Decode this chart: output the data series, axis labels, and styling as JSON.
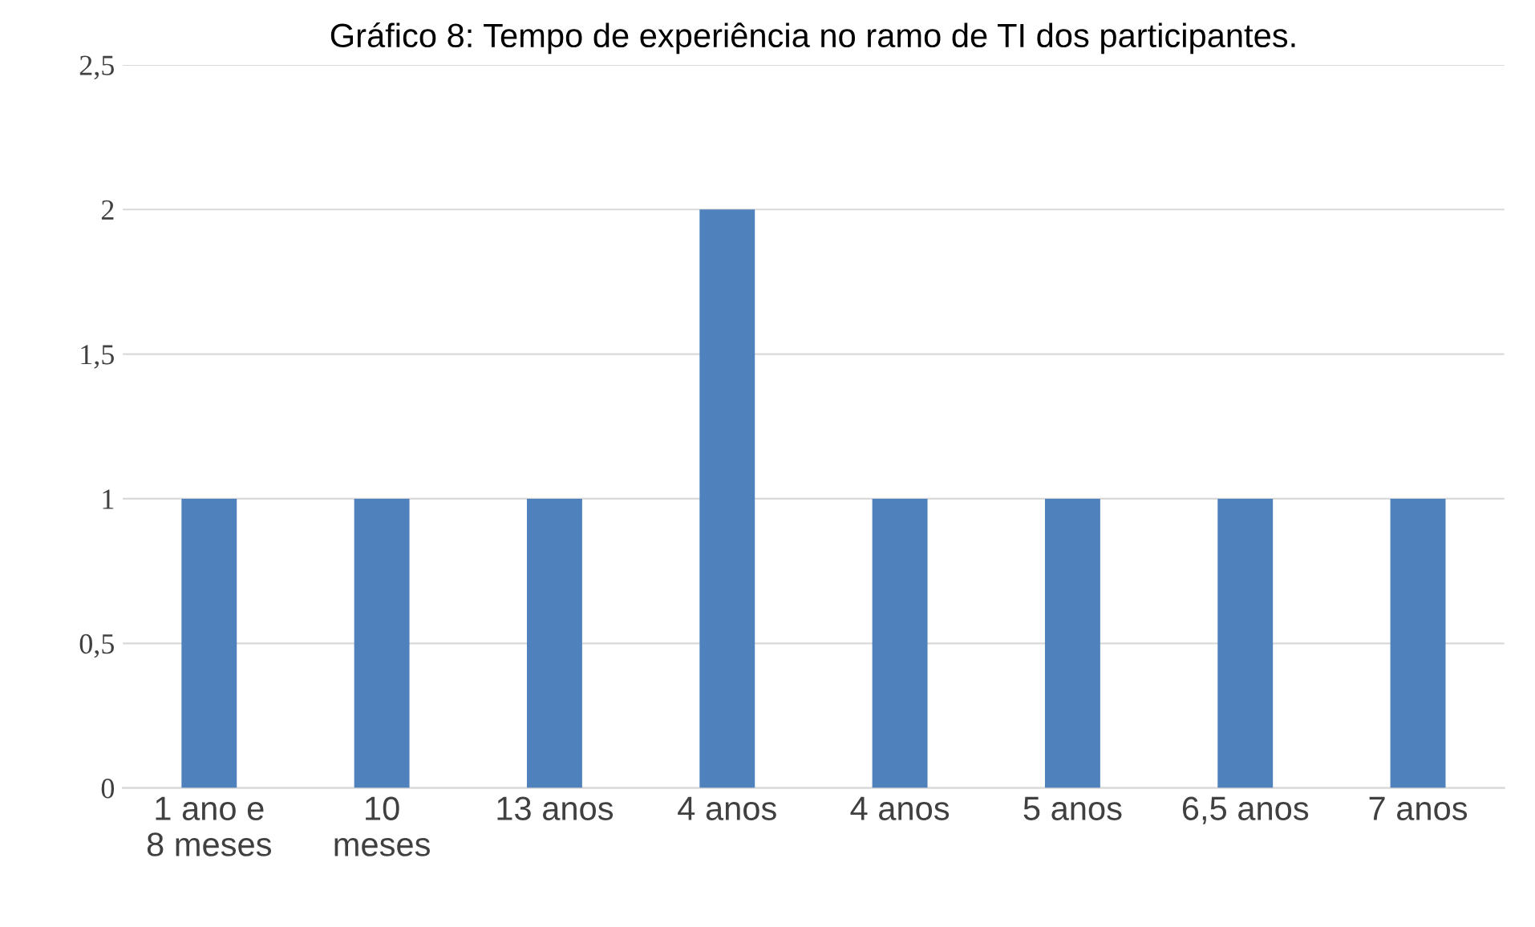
{
  "chart_data": {
    "type": "bar",
    "title": "Gráfico 8: Tempo de experiência no ramo de TI dos participantes.",
    "categories": [
      "1 ano e\n8 meses",
      "10\nmeses",
      "13 anos",
      "4 anos",
      "4 anos",
      "5 anos",
      "6,5 anos",
      "7 anos"
    ],
    "values": [
      1,
      1,
      1,
      2,
      1,
      1,
      1,
      1
    ],
    "color": "#4f81bd",
    "ylim": [
      0,
      2.5
    ],
    "yticks": [
      0,
      {
        "value": 0.5,
        "label": "0,5"
      },
      1,
      {
        "value": 1.5,
        "label": "1,5"
      },
      2,
      {
        "value": 2.5,
        "label": "2,5"
      }
    ],
    "grid": "y",
    "legend": false
  }
}
